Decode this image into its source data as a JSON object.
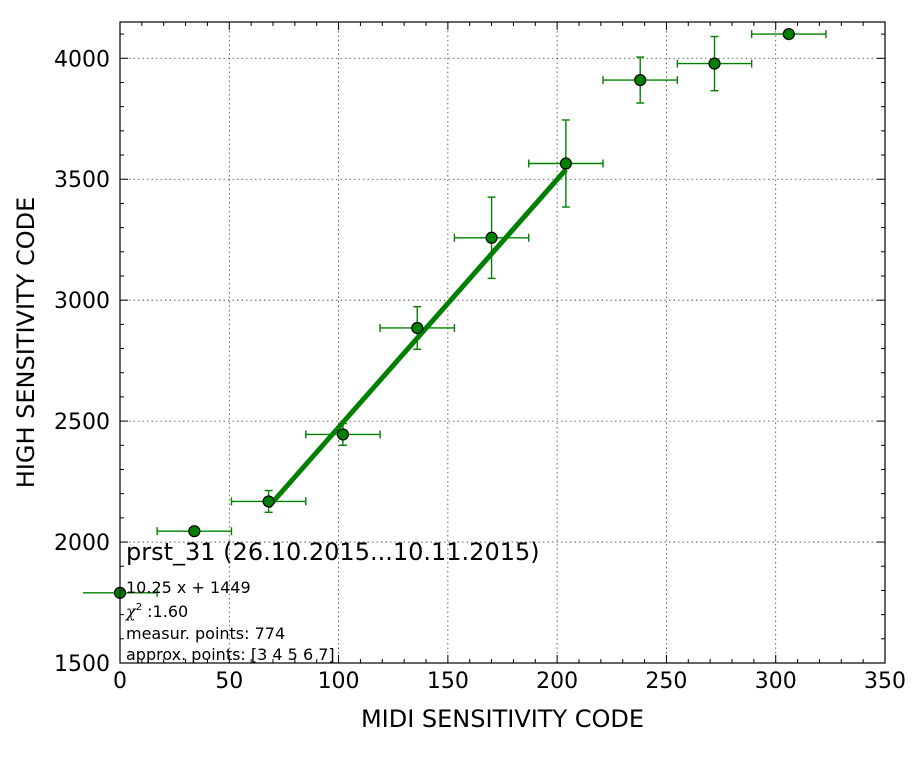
{
  "chart_data": {
    "type": "scatter",
    "title": "",
    "xlabel": "MIDI SENSITIVITY CODE",
    "ylabel": "HIGH SENSITIVITY CODE",
    "xlim": [
      0,
      350
    ],
    "ylim": [
      1500,
      4150
    ],
    "x_ticks": [
      0,
      50,
      100,
      150,
      200,
      250,
      300,
      350
    ],
    "y_ticks": [
      1500,
      2000,
      2500,
      3000,
      3500,
      4000
    ],
    "grid": true,
    "colors": {
      "points": "#008000",
      "marker_edge": "#000000",
      "fit": "#008000"
    },
    "points": [
      {
        "x": 0,
        "y": 1790,
        "xerr": 17,
        "yerr": 0
      },
      {
        "x": 34,
        "y": 2045,
        "xerr": 17,
        "yerr": 0
      },
      {
        "x": 68,
        "y": 2168,
        "xerr": 17,
        "yerr": 45
      },
      {
        "x": 102,
        "y": 2445,
        "xerr": 17,
        "yerr": 45
      },
      {
        "x": 136,
        "y": 2885,
        "xerr": 17,
        "yerr": 88
      },
      {
        "x": 170,
        "y": 3258,
        "xerr": 17,
        "yerr": 168
      },
      {
        "x": 204,
        "y": 3565,
        "xerr": 17,
        "yerr": 180
      },
      {
        "x": 238,
        "y": 3910,
        "xerr": 17,
        "yerr": 95
      },
      {
        "x": 272,
        "y": 3978,
        "xerr": 17,
        "yerr": 112
      },
      {
        "x": 306,
        "y": 4100,
        "xerr": 17,
        "yerr": 0
      }
    ],
    "fit": {
      "slope": 10.25,
      "intercept": 1449,
      "x_range": [
        68,
        204
      ]
    },
    "annotation": {
      "title": "prst_31 (26.10.2015...10.11.2015)",
      "fit_eq": "10.25 x + 1449",
      "chi2_symbol": "χ",
      "chi2_value": " :1.60",
      "measur_points": "measur. points: 774",
      "approx_points": "approx. points: [3 4 5 6 7]"
    }
  }
}
